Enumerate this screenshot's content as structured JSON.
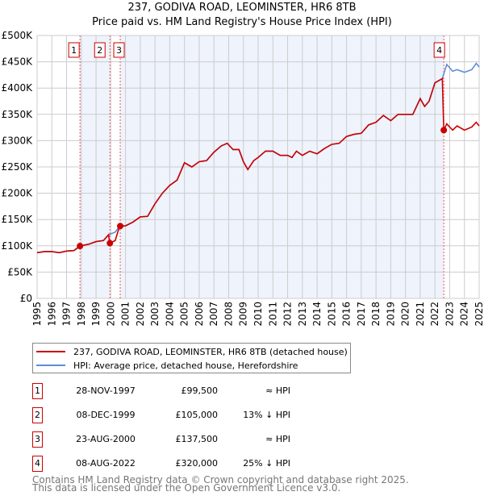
{
  "title": "237, GODIVA ROAD, LEOMINSTER, HR6 8TB",
  "subtitle": "Price paid vs. HM Land Registry's House Price Index (HPI)",
  "chart_data": {
    "type": "line",
    "xlim": [
      1995,
      2025
    ],
    "ylim": [
      0,
      500000
    ],
    "yticks": [
      {
        "v": 0,
        "l": "£0"
      },
      {
        "v": 50000,
        "l": "£50K"
      },
      {
        "v": 100000,
        "l": "£100K"
      },
      {
        "v": 150000,
        "l": "£150K"
      },
      {
        "v": 200000,
        "l": "£200K"
      },
      {
        "v": 250000,
        "l": "£250K"
      },
      {
        "v": 300000,
        "l": "£300K"
      },
      {
        "v": 350000,
        "l": "£350K"
      },
      {
        "v": 400000,
        "l": "£400K"
      },
      {
        "v": 450000,
        "l": "£450K"
      },
      {
        "v": 500000,
        "l": "£500K"
      }
    ],
    "xticks": [
      "1995",
      "1996",
      "1997",
      "1998",
      "1999",
      "2000",
      "2001",
      "2002",
      "2003",
      "2004",
      "2005",
      "2006",
      "2007",
      "2008",
      "2009",
      "2010",
      "2011",
      "2012",
      "2013",
      "2014",
      "2015",
      "2016",
      "2017",
      "2018",
      "2019",
      "2020",
      "2021",
      "2022",
      "2023",
      "2024",
      "2025"
    ],
    "grid": true,
    "series": [
      {
        "name": "HPI: Average price, detached house, Herefordshire",
        "color": "#5b8fd6",
        "x": [
          1995,
          1995.5,
          1996,
          1996.5,
          1997,
          1997.5,
          1997.9,
          1998.5,
          1999,
          1999.5,
          1999.85,
          2000.3,
          2000.6,
          2001,
          2001.5,
          2002,
          2002.5,
          2003,
          2003.5,
          2004,
          2004.5,
          2005,
          2005.5,
          2006,
          2006.5,
          2007,
          2007.5,
          2007.9,
          2008.3,
          2008.7,
          2009,
          2009.3,
          2009.7,
          2010,
          2010.5,
          2011,
          2011.5,
          2012,
          2012.3,
          2012.6,
          2013,
          2013.5,
          2014,
          2014.5,
          2015,
          2015.5,
          2016,
          2016.5,
          2017,
          2017.5,
          2018,
          2018.5,
          2019,
          2019.5,
          2020,
          2020.5,
          2021,
          2021.3,
          2021.6,
          2022,
          2022.5,
          2022.8,
          2023.2,
          2023.5,
          2024,
          2024.5,
          2024.8,
          2025
        ],
        "y": [
          87000,
          89000,
          89000,
          87000,
          90000,
          91000,
          99500,
          103000,
          108000,
          110000,
          121000,
          126000,
          137500,
          138000,
          145000,
          155000,
          156000,
          180000,
          200000,
          215000,
          225000,
          258000,
          250000,
          260000,
          262000,
          278000,
          290000,
          295000,
          283000,
          283000,
          260000,
          245000,
          262000,
          268000,
          280000,
          280000,
          272000,
          272000,
          268000,
          280000,
          272000,
          280000,
          275000,
          285000,
          293000,
          295000,
          308000,
          312000,
          314000,
          330000,
          335000,
          348000,
          338000,
          350000,
          350000,
          350000,
          380000,
          365000,
          375000,
          410000,
          418000,
          445000,
          432000,
          435000,
          430000,
          435000,
          447000,
          440000
        ]
      },
      {
        "name": "237, GODIVA ROAD, LEOMINSTER, HR6 8TB (detached house)",
        "color": "#cc0000",
        "x": [
          1995,
          1995.5,
          1996,
          1996.5,
          1997,
          1997.5,
          1997.9,
          1998.5,
          1999,
          1999.5,
          1999.85,
          1999.93,
          2000.3,
          2000.6,
          2001,
          2001.5,
          2002,
          2002.5,
          2003,
          2003.5,
          2004,
          2004.5,
          2005,
          2005.5,
          2006,
          2006.5,
          2007,
          2007.5,
          2007.9,
          2008.3,
          2008.7,
          2009,
          2009.3,
          2009.7,
          2010,
          2010.5,
          2011,
          2011.5,
          2012,
          2012.3,
          2012.6,
          2013,
          2013.5,
          2014,
          2014.5,
          2015,
          2015.5,
          2016,
          2016.5,
          2017,
          2017.5,
          2018,
          2018.5,
          2019,
          2019.5,
          2020,
          2020.5,
          2021,
          2021.3,
          2021.6,
          2022,
          2022.5,
          2022.6,
          2022.8,
          2023.2,
          2023.5,
          2024,
          2024.5,
          2024.8,
          2025
        ],
        "y": [
          87000,
          89000,
          89000,
          87000,
          90000,
          91000,
          99500,
          103000,
          108000,
          110000,
          121000,
          105000,
          110000,
          137500,
          138000,
          145000,
          155000,
          156000,
          180000,
          200000,
          215000,
          225000,
          258000,
          250000,
          260000,
          262000,
          278000,
          290000,
          295000,
          283000,
          283000,
          260000,
          245000,
          262000,
          268000,
          280000,
          280000,
          272000,
          272000,
          268000,
          280000,
          272000,
          280000,
          275000,
          285000,
          293000,
          295000,
          308000,
          312000,
          314000,
          330000,
          335000,
          348000,
          338000,
          350000,
          350000,
          350000,
          380000,
          365000,
          375000,
          410000,
          418000,
          320000,
          332000,
          320000,
          328000,
          320000,
          326000,
          335000,
          328000
        ]
      }
    ],
    "sales": [
      {
        "n": "1",
        "x": 1997.91,
        "y": 99500,
        "date": "28-NOV-1997",
        "price": "£99,500",
        "rel": "≈ HPI"
      },
      {
        "n": "2",
        "x": 1999.94,
        "y": 105000,
        "date": "08-DEC-1999",
        "price": "£105,000",
        "rel": "13% ↓ HPI"
      },
      {
        "n": "3",
        "x": 2000.64,
        "y": 137500,
        "date": "23-AUG-2000",
        "price": "£137,500",
        "rel": "≈ HPI"
      },
      {
        "n": "4",
        "x": 2022.6,
        "y": 320000,
        "date": "08-AUG-2022",
        "price": "£320,000",
        "rel": "25% ↓ HPI"
      }
    ]
  },
  "legend": {
    "red": "237, GODIVA ROAD, LEOMINSTER, HR6 8TB (detached house)",
    "blue": "HPI: Average price, detached house, Herefordshire"
  },
  "footer": {
    "line1": "Contains HM Land Registry data © Crown copyright and database right 2025.",
    "line2": "This data is licensed under the Open Government Licence v3.0."
  }
}
